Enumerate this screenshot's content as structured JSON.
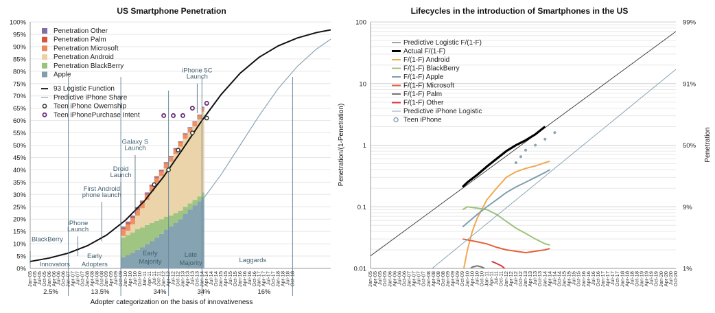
{
  "chart_data": [
    {
      "type": "area",
      "title": "US Smartphone Penetration",
      "xlabel": "Adopter categorization on the basis of innovativeness",
      "ylabel": "",
      "ylim": [
        0,
        100
      ],
      "y_ticks": [
        "0%",
        "5%",
        "10%",
        "15%",
        "20%",
        "25%",
        "30%",
        "35%",
        "40%",
        "45%",
        "50%",
        "55%",
        "60%",
        "65%",
        "70%",
        "75%",
        "80%",
        "85%",
        "90%",
        "95%",
        "100%"
      ],
      "x_ticks": [
        "Jan-05",
        "Apr-05",
        "Jul-05",
        "Oct-05",
        "Jan-06",
        "Apr-06",
        "Jul-06",
        "Oct-06",
        "Jan-07",
        "Apr-07",
        "Jul-07",
        "Oct-07",
        "Jan-08",
        "Apr-08",
        "Jul-08",
        "Oct-08",
        "Jan-09",
        "Apr-09",
        "Jul-09",
        "Oct-09",
        "Jan-10",
        "Apr-10",
        "Jul-10",
        "Oct-10",
        "Jan-11",
        "Apr-11",
        "Jul-11",
        "Oct-11",
        "Jan-12",
        "Apr-12",
        "Jul-12",
        "Oct-12",
        "Jan-13",
        "Apr-13",
        "Jul-13",
        "Oct-13",
        "Jan-14",
        "Apr-14",
        "Jul-14",
        "Oct-14",
        "Jan-15",
        "Apr-15",
        "Jul-15",
        "Oct-15",
        "Jan-16",
        "Apr-16",
        "Jul-16",
        "Oct-16",
        "Jan-17",
        "Apr-17",
        "Jul-17",
        "Oct-17",
        "Jan-18",
        "Apr-18",
        "Jul-18",
        "Oct-18",
        "Jan-19",
        "Apr-19",
        "Jul-19",
        "Oct-19",
        "Jan-20",
        "Apr-20",
        "Jul-20",
        "Oct-20"
      ],
      "x_ticks_shown": [
        "Jan-05",
        "Apr-05",
        "Jul-05",
        "Oct-05",
        "Jan-06",
        "Apr-06",
        "Jul-06",
        "Oct-06",
        "Jan-07",
        "Apr-07",
        "Jul-07",
        "Oct-07",
        "Jan-08",
        "Apr-08",
        "Jul-08",
        "Oct-08",
        "Jan-09",
        "Apr-09",
        "Jul-09",
        "Oct-09",
        "Jan-10",
        "Apr-10",
        "Jul-10",
        "Oct-10",
        "Jan-11",
        "Apr-11",
        "Jul-11",
        "Oct-11",
        "Jan-12",
        "Apr-12",
        "Jul-12",
        "Oct-12",
        "Jan-13",
        "Apr-13",
        "Jul-13",
        "Oct-13",
        "Jan-14",
        "Apr-14",
        "Jul-14",
        "Oct-14",
        "Jan-15",
        "Apr-15",
        "Jul-15",
        "Oct-15",
        "Jan-16",
        "Apr-16",
        "Jul-16",
        "Oct-16",
        "Jan-17",
        "Apr-17",
        "Jul-17",
        "Oct-17",
        "Jan-18",
        "Apr-18",
        "Jul-18",
        "Oct-18"
      ],
      "stack_x": [
        "Oct-09",
        "Jan-10",
        "Apr-10",
        "Jul-10",
        "Oct-10",
        "Jan-11",
        "Apr-11",
        "Jul-11",
        "Oct-11",
        "Jan-12",
        "Apr-12",
        "Jul-12",
        "Oct-12",
        "Jan-13",
        "Apr-13",
        "Jul-13",
        "Oct-13",
        "Jan-14"
      ],
      "stacked_series": [
        {
          "name": "Apple",
          "color": "#7f9eae",
          "values": [
            4.5,
            5.3,
            6.3,
            7.6,
            8.5,
            9.8,
            11.0,
            12.5,
            14.0,
            15.8,
            17.0,
            18.5,
            20.0,
            22.0,
            23.8,
            25.5,
            27.2,
            29.0
          ]
        },
        {
          "name": "Penetration BlackBerry",
          "color": "#9bc27c",
          "values": [
            8.0,
            8.2,
            8.3,
            8.3,
            8.1,
            7.8,
            7.4,
            6.8,
            6.0,
            5.2,
            4.5,
            4.0,
            3.4,
            3.0,
            2.6,
            2.3,
            2.0,
            1.8
          ]
        },
        {
          "name": "Penetration Android",
          "color": "#ead2a5",
          "values": [
            0.7,
            1.8,
            3.3,
            5.5,
            7.8,
            10.2,
            12.8,
            15.3,
            17.5,
            19.6,
            21.8,
            24.0,
            26.0,
            27.6,
            28.8,
            29.8,
            31.2,
            32.8
          ]
        },
        {
          "name": "Penetration Microsoft",
          "color": "#ec8a5e",
          "values": [
            2.6,
            2.5,
            2.4,
            2.3,
            2.2,
            2.1,
            2.0,
            2.0,
            1.9,
            1.9,
            1.8,
            1.8,
            1.7,
            1.7,
            1.7,
            1.7,
            1.6,
            1.6
          ]
        },
        {
          "name": "Penetration Palm",
          "color": "#d9533a",
          "values": [
            0.7,
            0.7,
            0.6,
            0.6,
            0.5,
            0.5,
            0.4,
            0.4,
            0.3,
            0.3,
            0.2,
            0.2,
            0.2,
            0.2,
            0.1,
            0.1,
            0.1,
            0.1
          ]
        },
        {
          "name": "Penetration Other",
          "color": "#7f6fa6",
          "values": [
            0.5,
            0.5,
            0.5,
            0.5,
            0.4,
            0.4,
            0.4,
            0.4,
            0.3,
            0.3,
            0.3,
            0.3,
            0.3,
            0.3,
            0.3,
            0.3,
            0.3,
            0.3
          ]
        }
      ],
      "logistic_93": {
        "name": "93 Logistic Function",
        "color": "#111111",
        "x": [
          "Jan-05",
          "Jan-06",
          "Jan-07",
          "Jan-08",
          "Jan-09",
          "Jan-10",
          "Jan-11",
          "Jan-12",
          "Jan-13",
          "Jan-14",
          "Jan-15",
          "Jan-16",
          "Jan-17",
          "Jan-18",
          "Jan-19",
          "Jan-20",
          "Oct-20"
        ],
        "values": [
          2.8,
          4.2,
          6.2,
          9.2,
          13.5,
          19.6,
          27.5,
          37.3,
          48.5,
          60.0,
          70.5,
          79.2,
          85.7,
          90.3,
          93.5,
          95.7,
          96.8
        ]
      },
      "predictive_iphone": {
        "name": "Predictive iPhone Share",
        "color": "#8aa4b4",
        "x": [
          "Jan-13",
          "Jan-14",
          "Jan-15",
          "Jan-16",
          "Jan-17",
          "Jan-18",
          "Jan-19",
          "Jan-20",
          "Oct-20"
        ],
        "values": [
          0.0,
          27.5,
          38.0,
          50.0,
          62.0,
          73.0,
          82.0,
          89.0,
          93.0
        ]
      },
      "teen_ownership": {
        "name": "Teen iPhone Owernship",
        "x": [
          "Jul-11",
          "Apr-12",
          "Oct-12",
          "Jul-13",
          "Apr-14"
        ],
        "values": [
          34,
          40,
          48,
          55,
          61
        ]
      },
      "teen_intent": {
        "name": "Teen iPhonePurchase Intent",
        "x": [
          "Jan-12",
          "Jul-12",
          "Jan-13",
          "Jul-13",
          "Apr-14"
        ],
        "values": [
          62,
          62,
          62,
          65,
          67
        ]
      },
      "legend": [
        "Penetration Other",
        "Penetration Palm",
        "Penetration Microsoft",
        "Penetration Android",
        "Penetration BlackBerry",
        "Apple",
        "93 Logistic Function",
        "Predictive iPhone Share",
        "Teen iPhone Owernship",
        "Teen iPhonePurchase Intent"
      ],
      "annotations": [
        {
          "text": "BlackBerry",
          "x": "Jan-05",
          "y": 11
        },
        {
          "text": "iPhone",
          "x": "Jul-07",
          "y": 17.5
        },
        {
          "text": "Launch",
          "x": "Jul-07",
          "y": 15
        },
        {
          "text": "First Android",
          "x": "Oct-08",
          "y": 31.5
        },
        {
          "text": "phone launch",
          "x": "Oct-08",
          "y": 29
        },
        {
          "text": "Droid",
          "x": "Oct-09",
          "y": 39.5
        },
        {
          "text": "Launch",
          "x": "Oct-09",
          "y": 37
        },
        {
          "text": "Galaxy S",
          "x": "Jul-10",
          "y": 50.5
        },
        {
          "text": "Launch",
          "x": "Jul-10",
          "y": 48
        },
        {
          "text": "iPhone 5C",
          "x": "Oct-13",
          "y": 79.5
        },
        {
          "text": "Launch",
          "x": "Oct-13",
          "y": 77
        }
      ],
      "adopter_categories": [
        {
          "label": "Innovators",
          "pct": "2.5%"
        },
        {
          "label": "Early Adopters",
          "pct": "13.5%"
        },
        {
          "label": "Early Majority",
          "pct": "34%"
        },
        {
          "label": "Late Majority",
          "pct": "34%"
        },
        {
          "label": "Laggards",
          "pct": "16%"
        }
      ]
    },
    {
      "type": "line",
      "title": "Lifecycles in the introduction of Smartphones in the US",
      "xlabel": "",
      "ylabel": "Penetration/(1-Penetration)",
      "y2label": "Penetration",
      "y_scale": "log",
      "ylim": [
        0.01,
        100
      ],
      "y_ticks": [
        "0.01",
        "0.1",
        "1",
        "10",
        "100"
      ],
      "y2_ticks": [
        "1%",
        "9%",
        "50%",
        "91%",
        "99%"
      ],
      "x_ticks": [
        "Jan-05",
        "Apr-05",
        "Jul-05",
        "Oct-05",
        "Jan-06",
        "Apr-06",
        "Jul-06",
        "Oct-06",
        "Jan-07",
        "Apr-07",
        "Jul-07",
        "Oct-07",
        "Jan-08",
        "Apr-08",
        "Jul-08",
        "Oct-08",
        "Jan-09",
        "Apr-09",
        "Jul-09",
        "Oct-09",
        "Jan-10",
        "Apr-10",
        "Jul-10",
        "Oct-10",
        "Jan-11",
        "Apr-11",
        "Jul-11",
        "Oct-11",
        "Jan-12",
        "Apr-12",
        "Jul-12",
        "Oct-12",
        "Jan-13",
        "Apr-13",
        "Jul-13",
        "Oct-13",
        "Jan-14",
        "Apr-14",
        "Jul-14",
        "Oct-14",
        "Jan-15",
        "Apr-15",
        "Jul-15",
        "Oct-15",
        "Jan-16",
        "Apr-16",
        "Jul-16",
        "Oct-16",
        "Jan-17",
        "Apr-17",
        "Jul-17",
        "Oct-17",
        "Jan-18",
        "Apr-18",
        "Jul-18",
        "Oct-18",
        "Jan-19",
        "Apr-19",
        "Jul-19",
        "Oct-19",
        "Jan-20",
        "Apr-20",
        "Jul-20",
        "Oct-20"
      ],
      "legend": [
        "Predictive Logistic F/(1-F)",
        "Actual F/(1-F)",
        "F/(1-F) Android",
        "F/(1-F) BlackBerry",
        "F/(1-F) Apple",
        "F/(1-F) Microsoft",
        "F/(1-F) Palm",
        "F/(1-F) Other",
        "Predictive iPhone Logistic",
        "Teen iPhone"
      ],
      "series": [
        {
          "name": "Predictive Logistic F/(1-F)",
          "color": "#444444",
          "x": [
            "Jan-05",
            "Oct-20"
          ],
          "values": [
            0.016,
            70
          ]
        },
        {
          "name": "Actual F/(1-F)",
          "color": "#000000",
          "x": [
            "Oct-09",
            "Jan-10",
            "Jul-10",
            "Jan-11",
            "Jul-11",
            "Jan-12",
            "Jul-12",
            "Jan-13",
            "Jul-13",
            "Jan-14"
          ],
          "values": [
            0.21,
            0.25,
            0.33,
            0.45,
            0.6,
            0.8,
            1.0,
            1.2,
            1.5,
            2.0
          ]
        },
        {
          "name": "F/(1-F) Android",
          "color": "#f0a84e",
          "x": [
            "Oct-09",
            "Jan-10",
            "Apr-10",
            "Jul-10",
            "Jan-11",
            "Jul-11",
            "Jan-12",
            "Jul-12",
            "Jan-13",
            "Jul-13",
            "Jan-14",
            "Apr-14"
          ],
          "values": [
            0.008,
            0.02,
            0.04,
            0.065,
            0.13,
            0.2,
            0.3,
            0.37,
            0.42,
            0.46,
            0.52,
            0.55
          ]
        },
        {
          "name": "F/(1-F) BlackBerry",
          "color": "#9bc27c",
          "x": [
            "Oct-09",
            "Jan-10",
            "Jul-10",
            "Jan-11",
            "Jul-11",
            "Jan-12",
            "Jul-12",
            "Jan-13",
            "Jul-13",
            "Jan-14",
            "Apr-14"
          ],
          "values": [
            0.09,
            0.1,
            0.095,
            0.09,
            0.075,
            0.058,
            0.045,
            0.037,
            0.03,
            0.025,
            0.024
          ]
        },
        {
          "name": "F/(1-F) Apple",
          "color": "#7f9eae",
          "x": [
            "Oct-09",
            "Jan-10",
            "Jul-10",
            "Jan-11",
            "Jul-11",
            "Jan-12",
            "Jul-12",
            "Jan-13",
            "Jul-13",
            "Jan-14",
            "Apr-14"
          ],
          "values": [
            0.047,
            0.055,
            0.075,
            0.1,
            0.13,
            0.17,
            0.21,
            0.25,
            0.3,
            0.36,
            0.4
          ]
        },
        {
          "name": "F/(1-F) Microsoft",
          "color": "#e5603b",
          "x": [
            "Oct-09",
            "Jan-10",
            "Jul-10",
            "Jan-11",
            "Jul-11",
            "Jan-12",
            "Jul-12",
            "Jan-13",
            "Jul-13",
            "Jan-14",
            "Apr-14"
          ],
          "values": [
            0.03,
            0.029,
            0.027,
            0.025,
            0.022,
            0.02,
            0.019,
            0.018,
            0.019,
            0.02,
            0.021
          ]
        },
        {
          "name": "F/(1-F) Palm",
          "color": "#777777",
          "x": [
            "Jan-10",
            "Apr-10",
            "Jul-10",
            "Oct-10",
            "Jan-11"
          ],
          "values": [
            0.009,
            0.0105,
            0.011,
            0.0105,
            0.0095
          ]
        },
        {
          "name": "F/(1-F) Other",
          "color": "#d9353a",
          "x": [
            "Apr-11",
            "Jul-11",
            "Oct-11",
            "Jan-12"
          ],
          "values": [
            0.013,
            0.012,
            0.011,
            0.0095
          ]
        },
        {
          "name": "Predictive iPhone Logistic",
          "color": "#8aa4b4",
          "x": [
            "Jan-08",
            "Oct-20"
          ],
          "values": [
            0.009,
            17
          ]
        },
        {
          "name": "Teen iPhone",
          "color": "#8aa4b4",
          "x": [
            "Jul-12",
            "Oct-12",
            "Jan-13",
            "Jul-13",
            "Jan-14",
            "Jul-14"
          ],
          "values": [
            0.52,
            0.65,
            0.83,
            1.0,
            1.25,
            1.6
          ]
        }
      ]
    }
  ]
}
